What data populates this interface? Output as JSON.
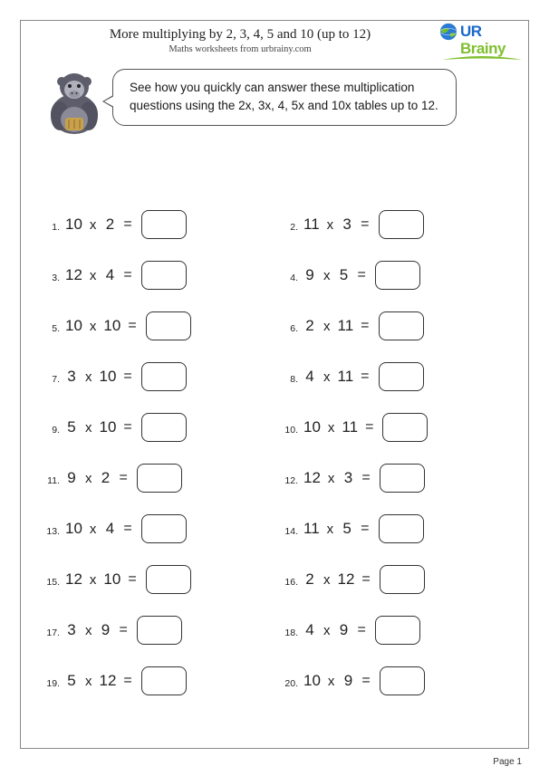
{
  "page": {
    "title": "More multiplying by 2, 3, 4, 5 and 10 (up to 12)",
    "subtitle": "Maths worksheets from urbrainy.com",
    "footer": "Page 1",
    "border_color": "#888888",
    "background": "#ffffff"
  },
  "logo": {
    "line1": "UR",
    "line2": "Brainy",
    "color_ur": "#1a68c9",
    "color_brainy": "#7fbf2f",
    "globe_blue": "#2a7ad6",
    "globe_green": "#6fbf2f"
  },
  "instructions": {
    "text": "See how you quickly can answer these multiplication questions using the 2x, 3x, 4, 5x and 10x tables up to 12.",
    "fontsize": 13.5,
    "border_color": "#555555"
  },
  "mascot": {
    "name": "gorilla",
    "body_color": "#6a6a78",
    "face_color": "#b0b0bc",
    "accent_color": "#c9a14a"
  },
  "worksheet": {
    "answer_box": {
      "width": 50,
      "height": 32,
      "border_radius": 8,
      "border_color": "#333333"
    },
    "expr_fontsize": 17,
    "num_fontsize": 10.5,
    "operator": "x",
    "equals": "=",
    "questions": [
      {
        "n": 1,
        "a": 10,
        "b": 2
      },
      {
        "n": 2,
        "a": 11,
        "b": 3
      },
      {
        "n": 3,
        "a": 12,
        "b": 4
      },
      {
        "n": 4,
        "a": 9,
        "b": 5
      },
      {
        "n": 5,
        "a": 10,
        "b": 10
      },
      {
        "n": 6,
        "a": 2,
        "b": 11
      },
      {
        "n": 7,
        "a": 3,
        "b": 10
      },
      {
        "n": 8,
        "a": 4,
        "b": 11
      },
      {
        "n": 9,
        "a": 5,
        "b": 10
      },
      {
        "n": 10,
        "a": 10,
        "b": 11
      },
      {
        "n": 11,
        "a": 9,
        "b": 2
      },
      {
        "n": 12,
        "a": 12,
        "b": 3
      },
      {
        "n": 13,
        "a": 10,
        "b": 4
      },
      {
        "n": 14,
        "a": 11,
        "b": 5
      },
      {
        "n": 15,
        "a": 12,
        "b": 10
      },
      {
        "n": 16,
        "a": 2,
        "b": 12
      },
      {
        "n": 17,
        "a": 3,
        "b": 9
      },
      {
        "n": 18,
        "a": 4,
        "b": 9
      },
      {
        "n": 19,
        "a": 5,
        "b": 12
      },
      {
        "n": 20,
        "a": 10,
        "b": 9
      }
    ]
  }
}
